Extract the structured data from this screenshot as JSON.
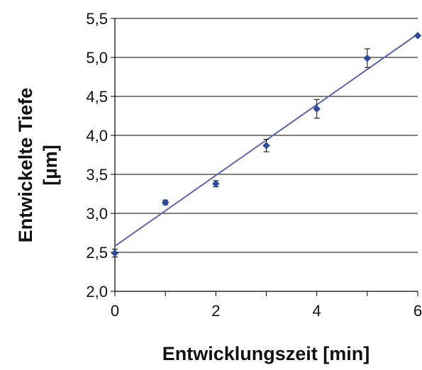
{
  "chart_data": {
    "type": "scatter",
    "title": "",
    "xlabel": "Entwicklungszeit [min]",
    "ylabel_lines": [
      "Entwickelte Tiefe",
      "[µm]"
    ],
    "xlim": [
      0,
      6
    ],
    "ylim": [
      2.0,
      5.5
    ],
    "x_ticks": [
      0,
      2,
      4,
      6
    ],
    "x_tick_labels": [
      "0",
      "2",
      "4",
      "6"
    ],
    "x_minor_ticks": [
      1,
      3,
      5
    ],
    "y_ticks": [
      2.0,
      2.5,
      3.0,
      3.5,
      4.0,
      4.5,
      5.0,
      5.5
    ],
    "y_tick_labels": [
      "2,0",
      "2,5",
      "3,0",
      "3,5",
      "4,0",
      "4,5",
      "5,0",
      "5,5"
    ],
    "grid": {
      "horizontal": true,
      "vertical": false
    },
    "legend": "none",
    "series": [
      {
        "x": [
          0,
          1,
          2,
          3,
          4,
          5,
          6
        ],
        "y": [
          2.49,
          3.14,
          3.38,
          3.87,
          4.34,
          4.99,
          5.28
        ],
        "error": [
          0.05,
          0.03,
          0.04,
          0.08,
          0.12,
          0.12,
          0.01
        ],
        "color": "#2b4a9c",
        "marker": "diamond"
      }
    ],
    "trendline": {
      "type": "linear",
      "x": [
        0,
        6
      ],
      "y": [
        2.58,
        5.3
      ],
      "color": "#5b66ad"
    }
  }
}
